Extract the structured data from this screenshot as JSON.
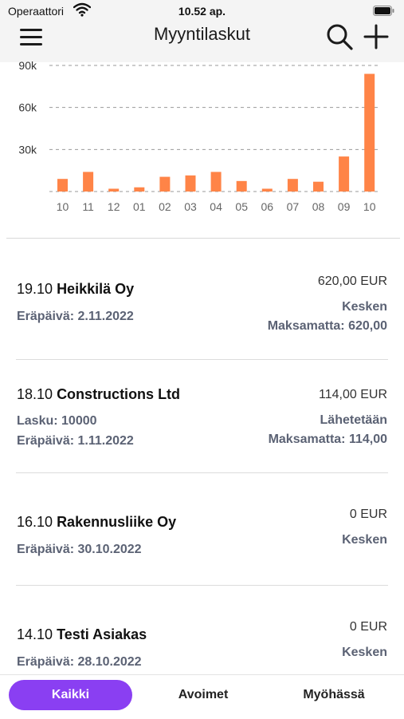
{
  "status": {
    "carrier": "Operaattori",
    "time": "10.52 ap."
  },
  "header": {
    "title": "Myyntilaskut",
    "icons": [
      "menu-icon",
      "search-icon",
      "plus-icon"
    ]
  },
  "chart_data": {
    "type": "bar",
    "categories": [
      "10",
      "11",
      "12",
      "01",
      "02",
      "03",
      "04",
      "05",
      "06",
      "07",
      "08",
      "09",
      "10"
    ],
    "values": [
      9000,
      14000,
      2000,
      3000,
      10500,
      11500,
      14000,
      7500,
      2000,
      9000,
      7000,
      25000,
      84000
    ],
    "yticks": [
      "30k",
      "60k",
      "90k"
    ],
    "ytick_values": [
      30000,
      60000,
      90000
    ],
    "ylim": [
      0,
      90000
    ],
    "bar_color": "#ff8447",
    "grid": "dashed"
  },
  "invoices": [
    {
      "date": "19.10",
      "customer": "Heikkilä Oy",
      "lines": [
        "Eräpäivä: 2.11.2022"
      ],
      "amount": "620,00 EUR",
      "status": "Kesken",
      "unpaid": "Maksamatta: 620,00"
    },
    {
      "date": "18.10",
      "customer": "Constructions Ltd",
      "lines": [
        "Lasku: 10000",
        "Eräpäivä: 1.11.2022"
      ],
      "amount": "114,00 EUR",
      "status": "Lähetetään",
      "unpaid": "Maksamatta: 114,00"
    },
    {
      "date": "16.10",
      "customer": "Rakennusliike Oy",
      "lines": [
        "Eräpäivä: 30.10.2022"
      ],
      "amount": "0 EUR",
      "status": "Kesken",
      "unpaid": ""
    },
    {
      "date": "14.10",
      "customer": "Testi Asiakas",
      "lines": [
        "Eräpäivä: 28.10.2022"
      ],
      "amount": "0 EUR",
      "status": "Kesken",
      "unpaid": ""
    }
  ],
  "tabs": [
    {
      "label": "Kaikki",
      "active": true
    },
    {
      "label": "Avoimet",
      "active": false
    },
    {
      "label": "Myöhässä",
      "active": false
    }
  ],
  "colors": {
    "accent": "#8a3ff2",
    "bar": "#ff8447",
    "muted_text": "#5b6274"
  }
}
